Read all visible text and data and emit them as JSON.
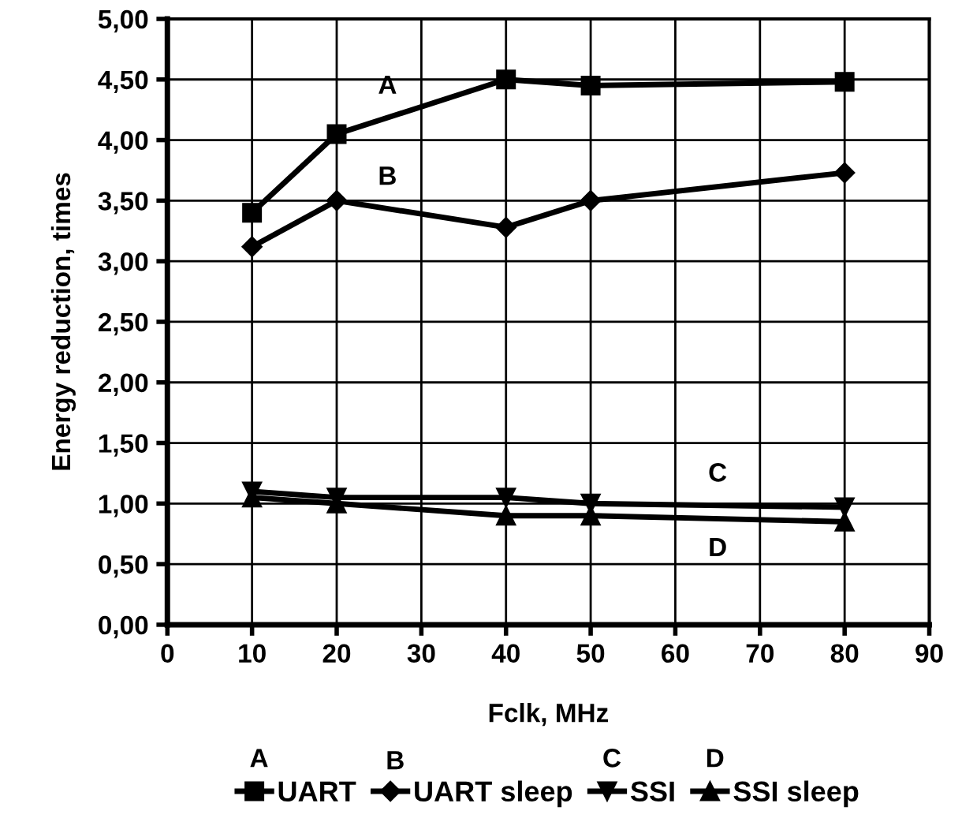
{
  "chart_data": {
    "type": "line",
    "xlabel": "Fclk, MHz",
    "ylabel": "Energy reduction, times",
    "xlim": [
      0,
      90
    ],
    "xticks": [
      0,
      10,
      20,
      30,
      40,
      50,
      60,
      70,
      80,
      90
    ],
    "ylim": [
      0,
      5
    ],
    "yticks": [
      {
        "value": 0,
        "label": "0,00"
      },
      {
        "value": 0.5,
        "label": "0,50"
      },
      {
        "value": 1,
        "label": "1,00"
      },
      {
        "value": 1.5,
        "label": "1,50"
      },
      {
        "value": 2,
        "label": "2,00"
      },
      {
        "value": 2.5,
        "label": "2,50"
      },
      {
        "value": 3,
        "label": "3,00"
      },
      {
        "value": 3.5,
        "label": "3,50"
      },
      {
        "value": 4,
        "label": "4,00"
      },
      {
        "value": 4.5,
        "label": "4,50"
      },
      {
        "value": 5,
        "label": "5,00"
      }
    ],
    "x": [
      10,
      20,
      40,
      50,
      80
    ],
    "series": [
      {
        "name": "UART",
        "color": "#000000",
        "marker": "square",
        "values": [
          3.4,
          4.05,
          4.5,
          4.45,
          4.48
        ]
      },
      {
        "name": "UART sleep",
        "color": "#000000",
        "marker": "diamond",
        "values": [
          3.12,
          3.5,
          3.28,
          3.5,
          3.73
        ]
      },
      {
        "name": "SSI",
        "color": "#000000",
        "marker": "triangle_down",
        "values": [
          1.1,
          1.05,
          1.05,
          1.0,
          0.97
        ]
      },
      {
        "name": "SSI sleep",
        "color": "#000000",
        "marker": "triangle",
        "values": [
          1.05,
          1.0,
          0.9,
          0.9,
          0.85
        ]
      }
    ],
    "annotations": [
      "A",
      "B",
      "C",
      "D",
      "A",
      "B",
      "C",
      "D"
    ],
    "grid": true,
    "legend": "bottom",
    "line_style": "solid"
  }
}
